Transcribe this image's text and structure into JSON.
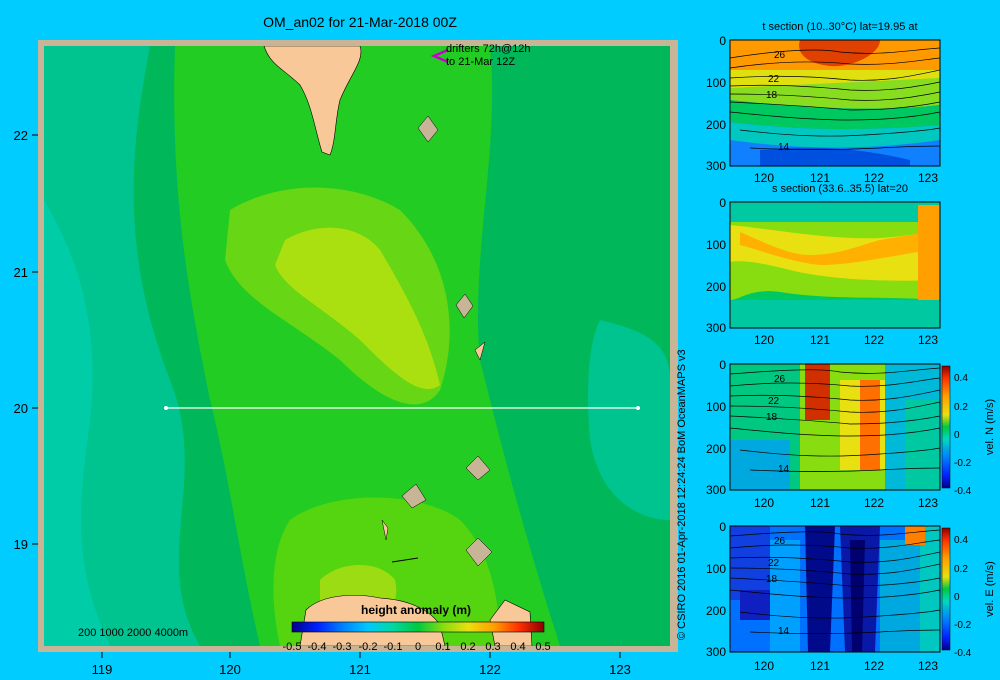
{
  "header": {
    "title": "OM_an02 for 21-Mar-2018 00Z"
  },
  "map": {
    "x_ticks": [
      "119",
      "120",
      "121",
      "122",
      "123"
    ],
    "y_ticks": [
      "22",
      "21",
      "20",
      "19"
    ],
    "drifters_label_1": "drifters 72h@12h",
    "drifters_label_2": "to 21-Mar 12Z",
    "depth_label": "200  1000  2000  4000m",
    "section_line": {
      "lat": 20,
      "lon_start": 119.5,
      "lon_end": 123.2
    }
  },
  "colorbar": {
    "title": "height anomaly  (m)",
    "ticks": [
      "-0.5",
      "-0.4",
      "-0.3",
      "-0.2",
      "-0.1",
      "0",
      "0.1",
      "0.2",
      "0.3",
      "0.4",
      "0.5"
    ]
  },
  "panels": {
    "t_section": {
      "title": "t section (10..30°C) lat=19.95 at",
      "contour_labels": [
        "26",
        "22",
        "18",
        "14"
      ]
    },
    "s_section": {
      "title": "s section (33.6..35.5) lat=20"
    },
    "vel_n": {
      "label": "vel. N  (m/s)",
      "contour_labels": [
        "26",
        "22",
        "18",
        "14"
      ]
    },
    "vel_e": {
      "label": "vel. E  (m/s)",
      "contour_labels": [
        "26",
        "22",
        "18",
        "14"
      ]
    },
    "y_ticks": [
      "0",
      "100",
      "200",
      "300"
    ],
    "x_ticks": [
      "120",
      "121",
      "122",
      "123"
    ],
    "vel_ticks": [
      "0.4",
      "0.2",
      "0",
      "-0.2",
      "-0.4"
    ]
  },
  "credit": "© CSIRO 2016   01-Apr-2018 12:24:24 BoM OceanMAPS v3",
  "colors": {
    "background": "#00ccff",
    "land": "#f8c898",
    "frame": "#c8b496"
  }
}
